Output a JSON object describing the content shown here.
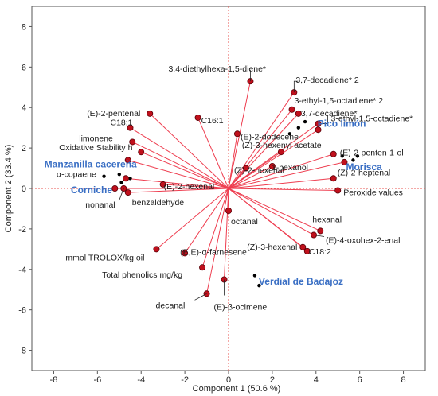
{
  "chart_data": {
    "type": "scatter",
    "subtype": "pca-biplot",
    "title": "",
    "xlabel": "Component 1  (50.6 %)",
    "ylabel": "Component 2  (33.4 %)",
    "xlim": [
      -9,
      9
    ],
    "ylim": [
      -9,
      9
    ],
    "xticks": [
      -8,
      -6,
      -4,
      -2,
      0,
      2,
      4,
      6,
      8
    ],
    "yticks": [
      -8,
      -6,
      -4,
      -2,
      0,
      2,
      4,
      6,
      8
    ],
    "grid": false,
    "colors": {
      "vector": "#ee3d4f",
      "point": "#c0101c",
      "group": "#3a6fc4",
      "sample": "#000000",
      "refline": "#e8504d"
    },
    "loadings": [
      {
        "label": "3,4-diethylhexa-1,5-diene*",
        "x": 1.0,
        "y": 5.3
      },
      {
        "label": "3,7-decadiene* 2",
        "x": 3.0,
        "y": 4.75
      },
      {
        "label": "3-ethyl-1,5-octadiene* 2",
        "x": 2.9,
        "y": 3.9
      },
      {
        "label": "3,7-decadiene*",
        "x": 3.2,
        "y": 3.7
      },
      {
        "label": "3-ethyl-1,5-octadiene*",
        "x": 4.1,
        "y": 3.2
      },
      {
        "label": "Pico limón",
        "x": 4.1,
        "y": 2.9
      },
      {
        "label": "(E)-2-pentenal",
        "x": -3.6,
        "y": 3.7
      },
      {
        "label": "C18:1",
        "x": -4.5,
        "y": 3.0
      },
      {
        "label": "C16:1",
        "x": -1.4,
        "y": 3.5
      },
      {
        "label": "limonene",
        "x": -4.4,
        "y": 2.3
      },
      {
        "label": "Oxidative Stability h",
        "x": -4.0,
        "y": 1.8
      },
      {
        "label": "Manzanilla cacereña",
        "x": -4.6,
        "y": 1.4
      },
      {
        "label": "(E)-2-dodecene",
        "x": 0.4,
        "y": 2.7
      },
      {
        "label": "(Z)-3-hexenyl acetate",
        "x": 2.4,
        "y": 1.8
      },
      {
        "label": "(E)-2-penten-1-ol",
        "x": 4.8,
        "y": 1.7
      },
      {
        "label": "Morisca",
        "x": 5.3,
        "y": 1.3
      },
      {
        "label": "(Z)-2-hexenal",
        "x": 0.8,
        "y": 1.0
      },
      {
        "label": "1-hexanol",
        "x": 2.0,
        "y": 1.1
      },
      {
        "label": "(Z)-2-heptenal",
        "x": 4.8,
        "y": 0.5
      },
      {
        "label": "Peroxide values",
        "x": 5.0,
        "y": -0.1
      },
      {
        "label": "α-copaene",
        "x": -4.7,
        "y": 0.5
      },
      {
        "label": "(E)-2-hexenal",
        "x": -3.0,
        "y": 0.2
      },
      {
        "label": "Corniche",
        "x": -5.2,
        "y": 0.0
      },
      {
        "label": "nonanal",
        "x": -4.8,
        "y": 0.0
      },
      {
        "label": "benzaldehyde",
        "x": -4.6,
        "y": -0.2
      },
      {
        "label": "octanal",
        "x": 0.0,
        "y": -1.1
      },
      {
        "label": "hexanal",
        "x": 4.2,
        "y": -2.1
      },
      {
        "label": "(E)-4-oxohex-2-enal",
        "x": 3.9,
        "y": -2.3
      },
      {
        "label": "(Z)-3-hexenal",
        "x": 3.4,
        "y": -2.9
      },
      {
        "label": "C18:2",
        "x": 3.6,
        "y": -3.1
      },
      {
        "label": "mmol TROLOX/kg oil",
        "x": -3.3,
        "y": -3.0
      },
      {
        "label": "(E,E)-α-farnesene",
        "x": -2.0,
        "y": -3.2
      },
      {
        "label": "Total phenolics mg/kg",
        "x": -1.2,
        "y": -3.9
      },
      {
        "label": "(E)-β-ocimene",
        "x": -0.2,
        "y": -4.5
      },
      {
        "label": "decanal",
        "x": -1.0,
        "y": -5.2
      }
    ],
    "groups": [
      {
        "label": "Pico limón",
        "x": 4.0,
        "y": 3.2
      },
      {
        "label": "Manzanilla cacereña",
        "x": -4.2,
        "y": 1.2
      },
      {
        "label": "Morisca",
        "x": 5.3,
        "y": 1.1
      },
      {
        "label": "Corniche",
        "x": -5.1,
        "y": 0.0
      },
      {
        "label": "Verdial de Badajoz",
        "x": 1.2,
        "y": -4.6
      }
    ],
    "samples": [
      {
        "x": 3.2,
        "y": 3.0
      },
      {
        "x": 3.5,
        "y": 3.3
      },
      {
        "x": 2.8,
        "y": 2.7
      },
      {
        "x": -5.7,
        "y": 0.6
      },
      {
        "x": -5.0,
        "y": 0.7
      },
      {
        "x": -4.9,
        "y": 0.3
      },
      {
        "x": -4.5,
        "y": 0.5
      },
      {
        "x": 5.7,
        "y": 1.4
      },
      {
        "x": 5.9,
        "y": 1.6
      },
      {
        "x": 5.2,
        "y": 1.6
      },
      {
        "x": 1.2,
        "y": -4.3
      },
      {
        "x": 1.4,
        "y": -4.8
      }
    ]
  }
}
